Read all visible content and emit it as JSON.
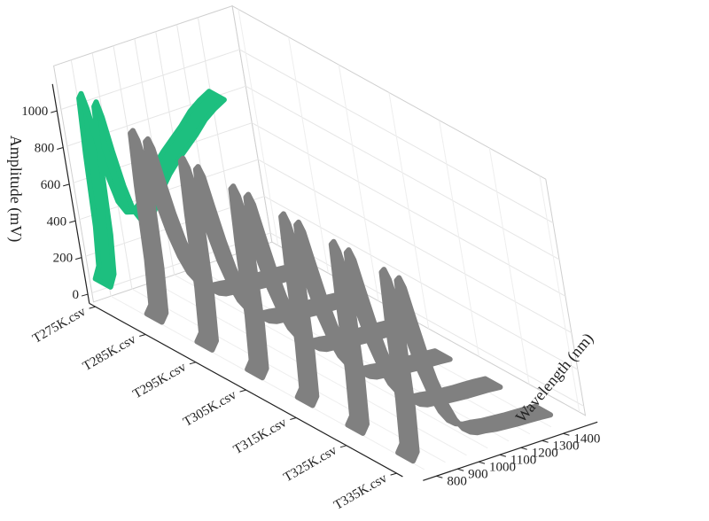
{
  "chart_data": {
    "type": "area",
    "view": "3d-waterfall",
    "xlabel": "Wavelength (nm)",
    "ylabel": "Amplitude (mV)",
    "zlabel": "",
    "xlim": [
      750,
      1400
    ],
    "ylim": [
      -50,
      1100
    ],
    "x_ticks": [
      "800",
      "900",
      "1000",
      "1100",
      "1200",
      "1300",
      "1400"
    ],
    "y_ticks": [
      "0",
      "200",
      "400",
      "600",
      "800",
      "1000"
    ],
    "grid": true,
    "categories": [
      "T275K.csv",
      "T285K.csv",
      "T295K.csv",
      "T305K.csv",
      "T315K.csv",
      "T325K.csv",
      "T335K.csv"
    ],
    "series": [
      {
        "category": "T275K.csv",
        "color": "#1dbf7f",
        "x": [
          750,
          775,
          790,
          800,
          812,
          825,
          840,
          860,
          885,
          910,
          940,
          970,
          1000,
          1030,
          1060,
          1100,
          1150,
          1200,
          1250,
          1300,
          1350,
          1400
        ],
        "y": [
          60,
          120,
          330,
          720,
          1020,
          1040,
          950,
          760,
          560,
          420,
          350,
          340,
          370,
          420,
          480,
          540,
          600,
          650,
          700,
          760,
          800,
          830
        ]
      },
      {
        "category": "T285K.csv",
        "color": "#808080",
        "x": [
          750,
          775,
          790,
          800,
          812,
          825,
          840,
          860,
          885,
          910,
          940,
          970,
          1000,
          1030,
          1060,
          1100,
          1150,
          1200,
          1250,
          1300,
          1350,
          1400
        ],
        "y": [
          20,
          60,
          300,
          700,
          980,
          990,
          930,
          760,
          560,
          400,
          260,
          160,
          100,
          70,
          55,
          50,
          40,
          35,
          30,
          28,
          25,
          20
        ]
      },
      {
        "category": "T295K.csv",
        "color": "#808080",
        "x": [
          750,
          775,
          790,
          800,
          812,
          825,
          840,
          860,
          885,
          910,
          940,
          970,
          1000,
          1030,
          1060,
          1100,
          1150,
          1200,
          1250,
          1300,
          1350,
          1400
        ],
        "y": [
          20,
          60,
          300,
          700,
          980,
          990,
          930,
          760,
          560,
          400,
          260,
          160,
          100,
          70,
          55,
          50,
          40,
          35,
          30,
          28,
          25,
          20
        ]
      },
      {
        "category": "T305K.csv",
        "color": "#808080",
        "x": [
          750,
          775,
          790,
          800,
          812,
          825,
          840,
          860,
          885,
          910,
          940,
          970,
          1000,
          1030,
          1060,
          1100,
          1150,
          1200,
          1250,
          1300,
          1350,
          1400
        ],
        "y": [
          20,
          60,
          300,
          700,
          980,
          990,
          930,
          760,
          560,
          400,
          260,
          160,
          100,
          70,
          55,
          50,
          40,
          35,
          30,
          28,
          25,
          20
        ]
      },
      {
        "category": "T315K.csv",
        "color": "#808080",
        "x": [
          750,
          775,
          790,
          800,
          812,
          825,
          840,
          860,
          885,
          910,
          940,
          970,
          1000,
          1030,
          1060,
          1100,
          1150,
          1200,
          1250,
          1300,
          1350,
          1400
        ],
        "y": [
          20,
          60,
          300,
          700,
          980,
          990,
          930,
          760,
          560,
          400,
          260,
          160,
          100,
          70,
          55,
          50,
          40,
          35,
          30,
          28,
          25,
          20
        ]
      },
      {
        "category": "T325K.csv",
        "color": "#808080",
        "x": [
          750,
          775,
          790,
          800,
          812,
          825,
          840,
          860,
          885,
          910,
          940,
          970,
          1000,
          1030,
          1060,
          1100,
          1150,
          1200,
          1250,
          1300,
          1350,
          1400
        ],
        "y": [
          20,
          60,
          300,
          700,
          980,
          990,
          930,
          760,
          560,
          400,
          260,
          160,
          100,
          70,
          55,
          50,
          40,
          35,
          30,
          28,
          25,
          20
        ]
      },
      {
        "category": "T335K.csv",
        "color": "#808080",
        "x": [
          750,
          775,
          790,
          800,
          812,
          825,
          840,
          860,
          885,
          910,
          940,
          970,
          1000,
          1030,
          1060,
          1100,
          1150,
          1200,
          1250,
          1300,
          1350,
          1400
        ],
        "y": [
          20,
          60,
          300,
          700,
          980,
          990,
          930,
          760,
          560,
          400,
          260,
          160,
          100,
          70,
          55,
          50,
          40,
          35,
          30,
          28,
          25,
          20
        ]
      }
    ]
  }
}
